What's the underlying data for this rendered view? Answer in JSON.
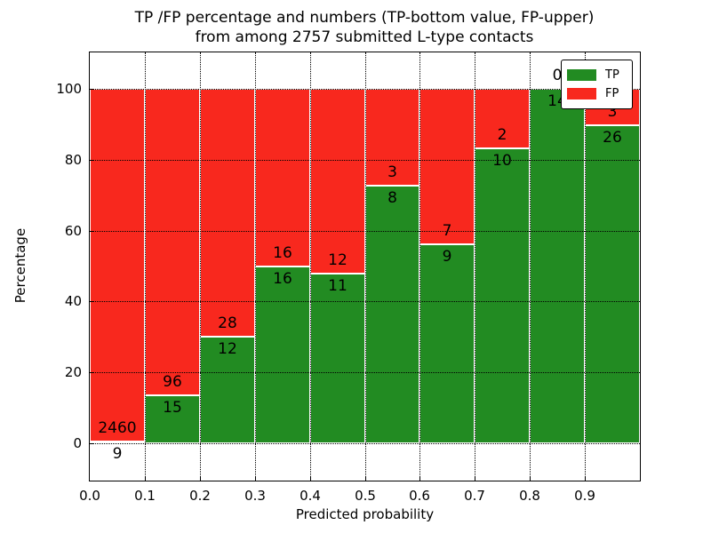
{
  "figure": {
    "title_line1": "TP /FP percentage and numbers (TP-bottom value, FP-upper)",
    "title_line2": "from among 2757 submitted L-type contacts"
  },
  "chart_data": {
    "type": "bar",
    "stacked": true,
    "normalized_to_percent": true,
    "title": "TP /FP percentage and numbers (TP-bottom value, FP-upper) from among 2757 submitted L-type contacts",
    "xlabel": "Predicted probability",
    "ylabel": "Percentage",
    "total_contacts": 2757,
    "bin_width": 0.1,
    "categories": [
      "0.0-0.1",
      "0.1-0.2",
      "0.2-0.3",
      "0.3-0.4",
      "0.4-0.5",
      "0.5-0.6",
      "0.6-0.7",
      "0.7-0.8",
      "0.8-0.9",
      "0.9-1.0"
    ],
    "x_tick_labels": [
      "0.0",
      "0.1",
      "0.2",
      "0.3",
      "0.4",
      "0.5",
      "0.6",
      "0.7",
      "0.8",
      "0.9"
    ],
    "y_tick_values": [
      0,
      20,
      40,
      60,
      80,
      100
    ],
    "xlim": [
      0.0,
      1.0
    ],
    "ylim": [
      -10.5,
      110.5
    ],
    "grid": true,
    "grid_style": "dotted",
    "series": [
      {
        "name": "TP",
        "color": "#228b22",
        "counts": [
          9,
          15,
          12,
          16,
          11,
          8,
          9,
          10,
          14,
          26
        ]
      },
      {
        "name": "FP",
        "color": "#f8281e",
        "counts": [
          2460,
          96,
          28,
          16,
          12,
          3,
          7,
          2,
          0,
          3
        ]
      }
    ],
    "annotation_rule": "FP count printed above the TP/FP boundary, TP count printed below it",
    "legend": {
      "position": "upper right",
      "entries": [
        {
          "label": "TP",
          "color": "#228b22"
        },
        {
          "label": "FP",
          "color": "#f8281e"
        }
      ]
    }
  },
  "colors": {
    "tp_green": "#228b22",
    "fp_red": "#f8281e",
    "grid": "#000000",
    "axes_edge": "#000000",
    "background": "#ffffff",
    "text": "#000000"
  }
}
